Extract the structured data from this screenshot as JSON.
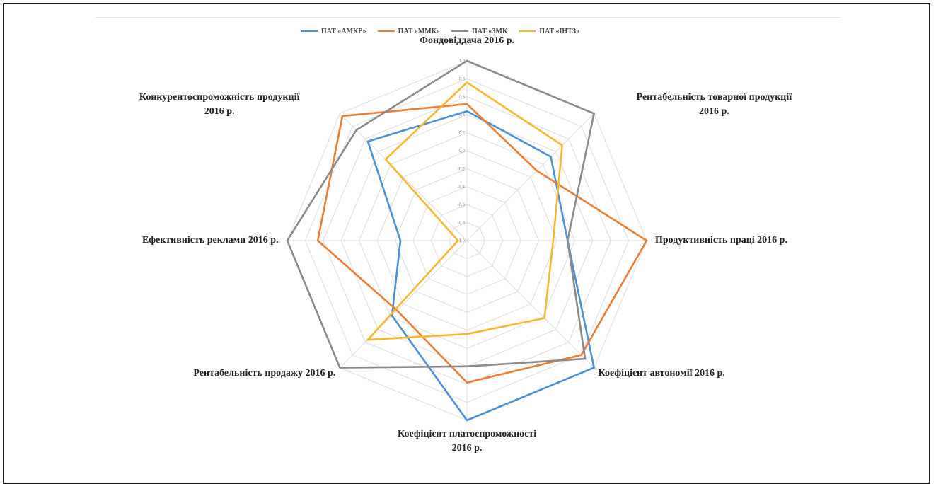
{
  "chart_data": {
    "type": "radar",
    "title": "",
    "axes": [
      "Фондовіддача 2016 р.",
      "Рентабельність товарної продукції 2016 р.",
      "Продуктивність праці 2016 р.",
      "Коефіцієнт автономії 2016 р.",
      "Коефіцієнт платоспроможності 2016 р.",
      "Рентабельність продажу 2016 р.",
      "Ефективність реклами 2016 р.",
      "Конкурентоспроможність продукції 2016 р."
    ],
    "axis_label_lines": [
      [
        "Фондовіддача 2016 р."
      ],
      [
        "Рентабельність товарної продукції",
        "2016 р."
      ],
      [
        "Продуктивність праці 2016 р."
      ],
      [
        "Коефіцієнт автономії 2016 р."
      ],
      [
        "Коефіцієнт платоспроможності",
        "2016 р."
      ],
      [
        "Рентабельність продажу 2016 р."
      ],
      [
        "Ефективність реклами 2016 р."
      ],
      [
        "Конкурентоспроможність продукції",
        "2016 р."
      ]
    ],
    "rlim": [
      -1.0,
      1.0
    ],
    "ticks": [
      "1,0",
      "0,8",
      "0,6",
      "0,4",
      "0,2",
      "0,0",
      "-0,2",
      "-0,4",
      "-0,6",
      "-0,8",
      "-1,0"
    ],
    "tick_values": [
      1.0,
      0.8,
      0.6,
      0.4,
      0.2,
      0.0,
      -0.2,
      -0.4,
      -0.6,
      -0.8,
      -1.0
    ],
    "series": [
      {
        "name": "ПАТ «АМКР»",
        "color": "#4a90d9",
        "values": [
          0.44,
          0.32,
          0.12,
          1.0,
          1.0,
          0.18,
          -0.26,
          0.56
        ]
      },
      {
        "name": "ПАТ «ММК»",
        "color": "#ed7d31",
        "values": [
          0.52,
          0.1,
          1.0,
          0.8,
          0.58,
          0.1,
          0.66,
          0.96
        ]
      },
      {
        "name": "ПАТ «ЗМК",
        "color": "#8a8a8a",
        "values": [
          1.0,
          1.0,
          0.12,
          0.86,
          0.4,
          1.0,
          1.0,
          0.74
        ]
      },
      {
        "name": "ПАТ «ІНТЗ»",
        "color": "#f5b82e",
        "values": [
          0.76,
          0.5,
          -0.04,
          0.22,
          0.04,
          0.56,
          -0.9,
          0.28
        ]
      }
    ],
    "grid": true,
    "legend_position": "top"
  }
}
